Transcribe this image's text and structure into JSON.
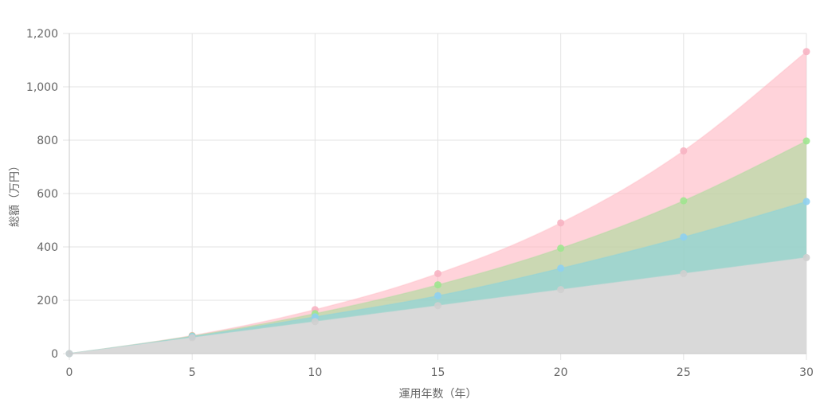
{
  "chart_data": {
    "type": "area",
    "xlabel": "運用年数（年）",
    "ylabel": "総額（万円）",
    "x": [
      0,
      5,
      10,
      15,
      20,
      25,
      30
    ],
    "xlim": [
      0,
      30
    ],
    "ylim": [
      0,
      1200
    ],
    "y_ticks": [
      0,
      200,
      400,
      600,
      800,
      1000,
      1200
    ],
    "y_tick_labels": [
      "0",
      "200",
      "400",
      "600",
      "800",
      "1,000",
      "1,200"
    ],
    "x_tick_labels": [
      "0",
      "5",
      "10",
      "15",
      "20",
      "25",
      "30"
    ],
    "grid": true,
    "legend": "none",
    "series": [
      {
        "values": [
          0,
          68,
          165,
          300,
          490,
          760,
          1132
        ],
        "fill": "#ffb6c1",
        "point": "#f7b3c2"
      },
      {
        "values": [
          0,
          66,
          150,
          258,
          395,
          573,
          797
        ],
        "fill": "#a8dc9a",
        "point": "#9ee68f"
      },
      {
        "values": [
          0,
          64,
          138,
          217,
          320,
          437,
          570
        ],
        "fill": "#86d3e0",
        "point": "#8fd0f0"
      },
      {
        "values": [
          0,
          60,
          120,
          180,
          240,
          300,
          360
        ],
        "fill": "#d9d9d9",
        "point": "#cfcfcf"
      }
    ]
  }
}
